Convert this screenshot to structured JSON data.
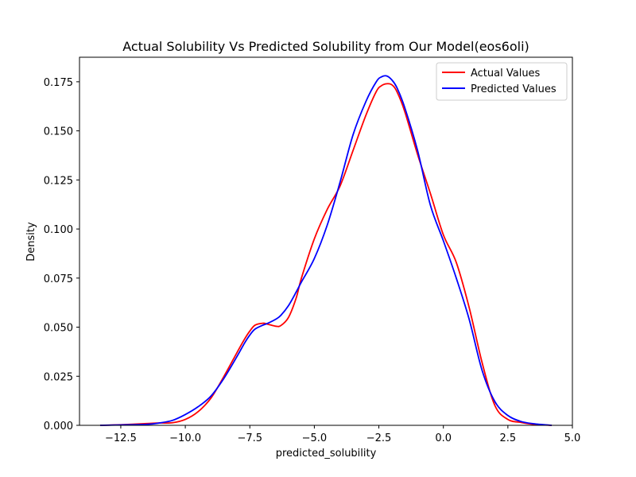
{
  "chart_data": {
    "type": "line",
    "title": "Actual Solubility Vs Predicted Solubility from Our Model(eos6oli)",
    "xlabel": "predicted_solubility",
    "ylabel": "Density",
    "xlim": [
      -14.1,
      5.0
    ],
    "ylim": [
      0.0,
      0.1875
    ],
    "xticks": [
      -12.5,
      -10.0,
      -7.5,
      -5.0,
      -2.5,
      0.0,
      2.5,
      5.0
    ],
    "xtick_labels": [
      "−12.5",
      "−10.0",
      "−7.5",
      "−5.0",
      "−2.5",
      "0.0",
      "2.5",
      "5.0"
    ],
    "yticks": [
      0.0,
      0.025,
      0.05,
      0.075,
      0.1,
      0.125,
      0.15,
      0.175
    ],
    "ytick_labels": [
      "0.000",
      "0.025",
      "0.050",
      "0.075",
      "0.100",
      "0.125",
      "0.150",
      "0.175"
    ],
    "legend_position": "top-right",
    "grid": false,
    "series": [
      {
        "name": "Actual Values",
        "color": "#ff0000",
        "x": [
          -13.3,
          -12.5,
          -11.5,
          -11.0,
          -10.5,
          -10.0,
          -9.5,
          -9.0,
          -8.5,
          -8.0,
          -7.7,
          -7.5,
          -7.3,
          -7.0,
          -6.8,
          -6.5,
          -6.3,
          -6.0,
          -5.7,
          -5.5,
          -5.0,
          -4.5,
          -4.0,
          -3.5,
          -3.0,
          -2.6,
          -2.4,
          -2.2,
          -2.0,
          -1.8,
          -1.5,
          -1.0,
          -0.5,
          0.0,
          0.5,
          1.0,
          1.5,
          2.0,
          2.5,
          3.0,
          3.5,
          4.2
        ],
        "y": [
          0.0,
          0.0003,
          0.0009,
          0.0012,
          0.0013,
          0.003,
          0.007,
          0.014,
          0.025,
          0.037,
          0.044,
          0.048,
          0.051,
          0.052,
          0.0515,
          0.0505,
          0.0508,
          0.055,
          0.065,
          0.075,
          0.095,
          0.11,
          0.122,
          0.14,
          0.158,
          0.17,
          0.173,
          0.174,
          0.1735,
          0.17,
          0.16,
          0.138,
          0.118,
          0.097,
          0.083,
          0.06,
          0.032,
          0.01,
          0.003,
          0.0015,
          0.0005,
          0.0
        ],
        "values": [
          0.0,
          0.0003,
          0.0009,
          0.0012,
          0.0013,
          0.003,
          0.007,
          0.014,
          0.025,
          0.037,
          0.044,
          0.048,
          0.051,
          0.052,
          0.0515,
          0.0505,
          0.0508,
          0.055,
          0.065,
          0.075,
          0.095,
          0.11,
          0.122,
          0.14,
          0.158,
          0.17,
          0.173,
          0.174,
          0.1735,
          0.17,
          0.16,
          0.138,
          0.118,
          0.097,
          0.083,
          0.06,
          0.032,
          0.01,
          0.003,
          0.0015,
          0.0005,
          0.0
        ]
      },
      {
        "name": "Predicted Values",
        "color": "#0000ff",
        "x": [
          -13.3,
          -12.5,
          -11.5,
          -11.0,
          -10.5,
          -10.0,
          -9.5,
          -9.0,
          -8.5,
          -8.0,
          -7.7,
          -7.5,
          -7.3,
          -7.0,
          -6.8,
          -6.5,
          -6.3,
          -6.0,
          -5.7,
          -5.5,
          -5.0,
          -4.5,
          -4.0,
          -3.5,
          -3.0,
          -2.6,
          -2.4,
          -2.2,
          -2.0,
          -1.8,
          -1.5,
          -1.0,
          -0.5,
          0.0,
          0.5,
          1.0,
          1.5,
          2.0,
          2.5,
          3.0,
          3.5,
          4.2
        ],
        "y": [
          0.0,
          0.0002,
          0.0005,
          0.0012,
          0.0025,
          0.0055,
          0.0095,
          0.015,
          0.024,
          0.035,
          0.042,
          0.046,
          0.049,
          0.051,
          0.052,
          0.054,
          0.056,
          0.061,
          0.068,
          0.073,
          0.085,
          0.102,
          0.124,
          0.148,
          0.165,
          0.175,
          0.1775,
          0.178,
          0.176,
          0.172,
          0.162,
          0.14,
          0.112,
          0.094,
          0.075,
          0.054,
          0.028,
          0.012,
          0.005,
          0.002,
          0.0008,
          0.0
        ],
        "values": [
          0.0,
          0.0002,
          0.0005,
          0.0012,
          0.0025,
          0.0055,
          0.0095,
          0.015,
          0.024,
          0.035,
          0.042,
          0.046,
          0.049,
          0.051,
          0.052,
          0.054,
          0.056,
          0.061,
          0.068,
          0.073,
          0.085,
          0.102,
          0.124,
          0.148,
          0.165,
          0.175,
          0.1775,
          0.178,
          0.176,
          0.172,
          0.162,
          0.14,
          0.112,
          0.094,
          0.075,
          0.054,
          0.028,
          0.012,
          0.005,
          0.002,
          0.0008,
          0.0
        ]
      }
    ]
  }
}
